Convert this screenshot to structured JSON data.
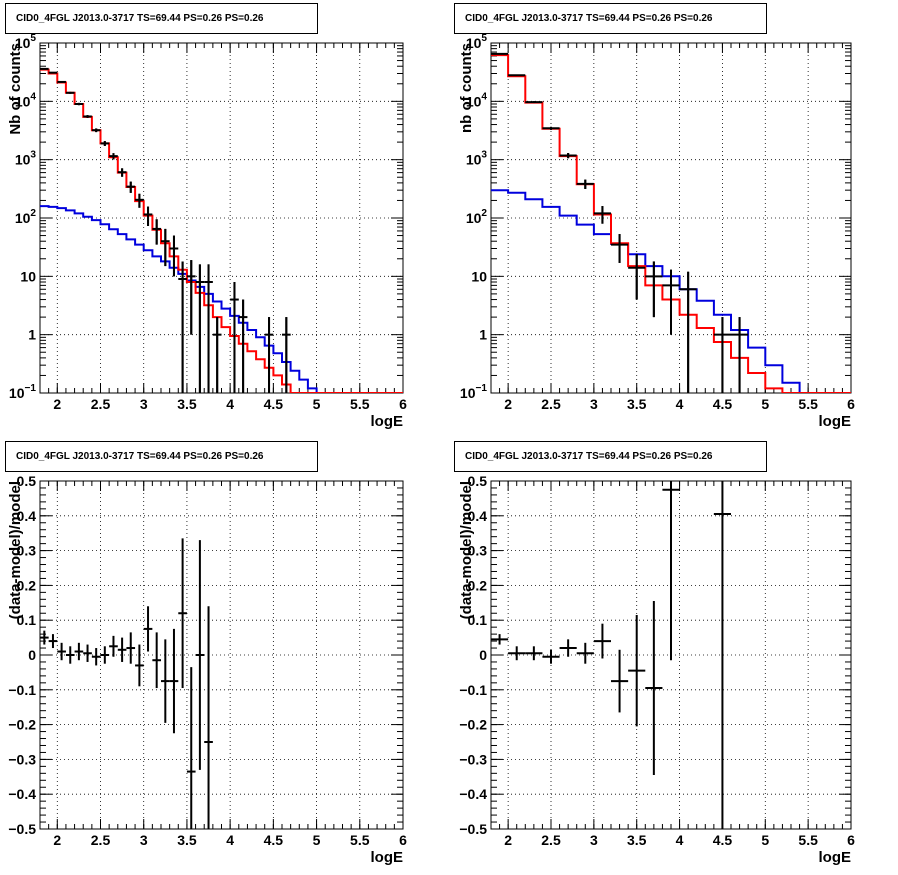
{
  "colors": {
    "data": "#000000",
    "model_total": "#ff0000",
    "model_component": "#0000dd"
  },
  "chart_data": [
    {
      "type": "line",
      "title": "CID0_4FGL J2013.0-3717 TS=69.44 PS=0.26 PS=0.26",
      "xlabel": "logE",
      "ylabel": "Nb of counts",
      "yscale": "log",
      "xlim": [
        1.8,
        6
      ],
      "ylim": [
        0.1,
        100000
      ],
      "x_ticks": [
        "2",
        "2.5",
        "3",
        "3.5",
        "4",
        "4.5",
        "5",
        "5.5",
        "6"
      ],
      "y_ticks": [
        "10^-1",
        "1",
        "10",
        "10^2",
        "10^3",
        "10^4",
        "10^5"
      ],
      "grid": true,
      "bin_edges": [
        1.8,
        1.9,
        2.0,
        2.1,
        2.2,
        2.3,
        2.4,
        2.5,
        2.6,
        2.7,
        2.8,
        2.9,
        3.0,
        3.1,
        3.2,
        3.3,
        3.4,
        3.5,
        3.6,
        3.7,
        3.8,
        3.9,
        4.0,
        4.1,
        4.2,
        4.3,
        4.4,
        4.5,
        4.6,
        4.7,
        4.8,
        4.9,
        5.0,
        5.1,
        5.2,
        5.3,
        5.4,
        5.5,
        5.6,
        5.7,
        5.8,
        5.9,
        6.0
      ],
      "series": [
        {
          "role": "model_total",
          "style": "step",
          "values": [
            35000,
            30000,
            21000,
            14000,
            9000,
            5400,
            3200,
            1900,
            1100,
            600,
            340,
            195,
            110,
            63,
            37,
            22,
            13,
            8,
            5.2,
            3.2,
            2.0,
            1.35,
            0.95,
            0.7,
            0.52,
            0.38,
            0.27,
            0.2,
            0.14,
            0.1,
            0.1,
            0.1,
            0.1,
            0.1,
            0.1,
            0.1,
            0.1,
            0.1,
            0.1,
            0.1,
            0.1,
            0.1
          ]
        },
        {
          "role": "model_component",
          "style": "step",
          "values": [
            160,
            155,
            148,
            135,
            120,
            105,
            92,
            78,
            64,
            53,
            43,
            35,
            28,
            22,
            18,
            14,
            11,
            8.5,
            6.6,
            5,
            3.7,
            2.8,
            2.1,
            1.6,
            1.2,
            0.9,
            0.65,
            0.48,
            0.34,
            0.24,
            0.17,
            0.12,
            0.1,
            0.1,
            0.1,
            0.1,
            0.1,
            0.1,
            0.1,
            0.1,
            0.1,
            0.1
          ]
        },
        {
          "role": "data",
          "style": "errorbar",
          "points": [
            {
              "x": 1.85,
              "y": 36000,
              "dy": 800
            },
            {
              "x": 1.95,
              "y": 31000,
              "dy": 700
            },
            {
              "x": 2.05,
              "y": 21500,
              "dy": 600
            },
            {
              "x": 2.15,
              "y": 14000,
              "dy": 500
            },
            {
              "x": 2.25,
              "y": 9000,
              "dy": 400
            },
            {
              "x": 2.35,
              "y": 5500,
              "dy": 300
            },
            {
              "x": 2.45,
              "y": 3200,
              "dy": 230
            },
            {
              "x": 2.55,
              "y": 1900,
              "dy": 180
            },
            {
              "x": 2.65,
              "y": 1150,
              "dy": 140
            },
            {
              "x": 2.75,
              "y": 610,
              "dy": 100
            },
            {
              "x": 2.85,
              "y": 345,
              "dy": 75
            },
            {
              "x": 2.95,
              "y": 205,
              "dy": 55
            },
            {
              "x": 3.05,
              "y": 115,
              "dy": 42
            },
            {
              "x": 3.15,
              "y": 65,
              "dy": 30
            },
            {
              "x": 3.25,
              "y": 40,
              "dy": 25
            },
            {
              "x": 3.35,
              "y": 30,
              "dy": 20
            },
            {
              "x": 3.45,
              "y": 9,
              "dy": 9
            },
            {
              "x": 3.55,
              "y": 10,
              "dy": 9
            },
            {
              "x": 3.65,
              "y": 8,
              "dy": 8
            },
            {
              "x": 3.75,
              "y": 8,
              "dy": 8
            },
            {
              "x": 3.85,
              "y": 1,
              "dy": 1
            },
            {
              "x": 4.05,
              "y": 4,
              "dy": 4
            },
            {
              "x": 4.15,
              "y": 2,
              "dy": 2
            },
            {
              "x": 4.45,
              "y": 1,
              "dy": 1
            },
            {
              "x": 4.65,
              "y": 1,
              "dy": 1
            }
          ]
        }
      ]
    },
    {
      "type": "line",
      "title": "CID0_4FGL J2013.0-3717 TS=69.44 PS=0.26 PS=0.26",
      "xlabel": "logE",
      "ylabel": "nb of counts",
      "yscale": "log",
      "xlim": [
        1.8,
        6
      ],
      "ylim": [
        0.1,
        100000
      ],
      "x_ticks": [
        "2",
        "2.5",
        "3",
        "3.5",
        "4",
        "4.5",
        "5",
        "5.5",
        "6"
      ],
      "y_ticks": [
        "10^-1",
        "1",
        "10",
        "10^2",
        "10^3",
        "10^4",
        "10^5"
      ],
      "grid": true,
      "bin_edges": [
        1.8,
        2.0,
        2.2,
        2.4,
        2.6,
        2.8,
        3.0,
        3.2,
        3.4,
        3.6,
        3.8,
        4.0,
        4.2,
        4.4,
        4.6,
        4.8,
        5.0,
        5.2,
        5.4,
        5.6,
        5.8,
        6.0
      ],
      "series": [
        {
          "role": "model_total",
          "style": "step",
          "values": [
            62000,
            27000,
            9500,
            3400,
            1150,
            380,
            115,
            37,
            15,
            7,
            4,
            2.2,
            1.3,
            0.75,
            0.4,
            0.22,
            0.12,
            0.1,
            0.1,
            0.1,
            0.1
          ]
        },
        {
          "role": "model_component",
          "style": "step",
          "values": [
            300,
            270,
            210,
            155,
            110,
            77,
            53,
            36,
            24,
            15,
            10,
            6,
            3.8,
            2.2,
            1.2,
            0.6,
            0.3,
            0.15,
            0.1,
            0.1,
            0.1
          ]
        },
        {
          "role": "data",
          "style": "errorbar",
          "points": [
            {
              "x": 1.9,
              "y": 65000,
              "dy": 900
            },
            {
              "x": 2.1,
              "y": 28000,
              "dy": 600
            },
            {
              "x": 2.3,
              "y": 9700,
              "dy": 350
            },
            {
              "x": 2.5,
              "y": 3450,
              "dy": 200
            },
            {
              "x": 2.7,
              "y": 1180,
              "dy": 120
            },
            {
              "x": 2.9,
              "y": 385,
              "dy": 70
            },
            {
              "x": 3.1,
              "y": 120,
              "dy": 40
            },
            {
              "x": 3.3,
              "y": 35,
              "dy": 18
            },
            {
              "x": 3.5,
              "y": 14,
              "dy": 10
            },
            {
              "x": 3.7,
              "y": 10,
              "dy": 8
            },
            {
              "x": 3.9,
              "y": 7,
              "dy": 6
            },
            {
              "x": 4.1,
              "y": 6,
              "dy": 6
            },
            {
              "x": 4.5,
              "y": 1,
              "dy": 1
            },
            {
              "x": 4.7,
              "y": 1,
              "dy": 1
            }
          ]
        }
      ]
    },
    {
      "type": "scatter",
      "title": "CID0_4FGL J2013.0-3717 TS=69.44 PS=0.26 PS=0.26",
      "xlabel": "logE",
      "ylabel": "(data-model)/model",
      "xlim": [
        1.8,
        6
      ],
      "ylim": [
        -0.5,
        0.5
      ],
      "x_ticks": [
        "2",
        "2.5",
        "3",
        "3.5",
        "4",
        "4.5",
        "5",
        "5.5",
        "6"
      ],
      "y_ticks": [
        "−0.5",
        "−0.4",
        "−0.3",
        "−0.2",
        "−0.1",
        "0",
        "0.1",
        "0.2",
        "0.3",
        "0.4",
        "0.5"
      ],
      "grid": true,
      "points": [
        {
          "x": 1.85,
          "y": 0.05,
          "dy": 0.02,
          "dx": 0.05
        },
        {
          "x": 1.95,
          "y": 0.04,
          "dy": 0.02,
          "dx": 0.05
        },
        {
          "x": 2.05,
          "y": 0.01,
          "dy": 0.025,
          "dx": 0.05
        },
        {
          "x": 2.15,
          "y": 0.0,
          "dy": 0.025,
          "dx": 0.05
        },
        {
          "x": 2.25,
          "y": 0.01,
          "dy": 0.025,
          "dx": 0.05
        },
        {
          "x": 2.35,
          "y": 0.005,
          "dy": 0.025,
          "dx": 0.05
        },
        {
          "x": 2.45,
          "y": -0.005,
          "dy": 0.025,
          "dx": 0.05
        },
        {
          "x": 2.55,
          "y": 0.0,
          "dy": 0.025,
          "dx": 0.05
        },
        {
          "x": 2.65,
          "y": 0.025,
          "dy": 0.03,
          "dx": 0.05
        },
        {
          "x": 2.75,
          "y": 0.015,
          "dy": 0.035,
          "dx": 0.05
        },
        {
          "x": 2.85,
          "y": 0.02,
          "dy": 0.045,
          "dx": 0.05
        },
        {
          "x": 2.95,
          "y": -0.03,
          "dy": 0.06,
          "dx": 0.05
        },
        {
          "x": 3.05,
          "y": 0.075,
          "dy": 0.065,
          "dx": 0.05
        },
        {
          "x": 3.15,
          "y": -0.015,
          "dy": 0.08,
          "dx": 0.05
        },
        {
          "x": 3.25,
          "y": -0.075,
          "dy": 0.12,
          "dx": 0.05
        },
        {
          "x": 3.35,
          "y": -0.075,
          "dy": 0.15,
          "dx": 0.05
        },
        {
          "x": 3.45,
          "y": 0.12,
          "dy": 0.215,
          "dx": 0.05
        },
        {
          "x": 3.55,
          "y": -0.335,
          "dy": 0.3,
          "dx": 0.05
        },
        {
          "x": 3.65,
          "y": 0.0,
          "dy": 0.33,
          "dx": 0.05
        },
        {
          "x": 3.75,
          "y": -0.25,
          "dy": 0.39,
          "dx": 0.05
        }
      ]
    },
    {
      "type": "scatter",
      "title": "CID0_4FGL J2013.0-3717 TS=69.44 PS=0.26 PS=0.26",
      "xlabel": "logE",
      "ylabel": "(data-model)/model",
      "xlim": [
        1.8,
        6
      ],
      "ylim": [
        -0.5,
        0.5
      ],
      "x_ticks": [
        "2",
        "2.5",
        "3",
        "3.5",
        "4",
        "4.5",
        "5",
        "5.5",
        "6"
      ],
      "y_ticks": [
        "−0.5",
        "−0.4",
        "−0.3",
        "−0.2",
        "−0.1",
        "0",
        "0.1",
        "0.2",
        "0.3",
        "0.4",
        "0.5"
      ],
      "grid": true,
      "points": [
        {
          "x": 1.9,
          "y": 0.045,
          "dy": 0.015,
          "dx": 0.1
        },
        {
          "x": 2.1,
          "y": 0.005,
          "dy": 0.02,
          "dx": 0.1
        },
        {
          "x": 2.3,
          "y": 0.005,
          "dy": 0.02,
          "dx": 0.1
        },
        {
          "x": 2.5,
          "y": -0.005,
          "dy": 0.02,
          "dx": 0.1
        },
        {
          "x": 2.7,
          "y": 0.02,
          "dy": 0.025,
          "dx": 0.1
        },
        {
          "x": 2.9,
          "y": 0.005,
          "dy": 0.03,
          "dx": 0.1
        },
        {
          "x": 3.1,
          "y": 0.04,
          "dy": 0.05,
          "dx": 0.1
        },
        {
          "x": 3.3,
          "y": -0.075,
          "dy": 0.09,
          "dx": 0.1
        },
        {
          "x": 3.5,
          "y": -0.045,
          "dy": 0.16,
          "dx": 0.1
        },
        {
          "x": 3.7,
          "y": -0.095,
          "dy": 0.25,
          "dx": 0.1
        },
        {
          "x": 3.9,
          "y": 0.475,
          "dy": 0.49,
          "dx": 0.1
        },
        {
          "x": 4.5,
          "y": 0.405,
          "dy": 0.95,
          "dx": 0.1
        }
      ]
    }
  ]
}
